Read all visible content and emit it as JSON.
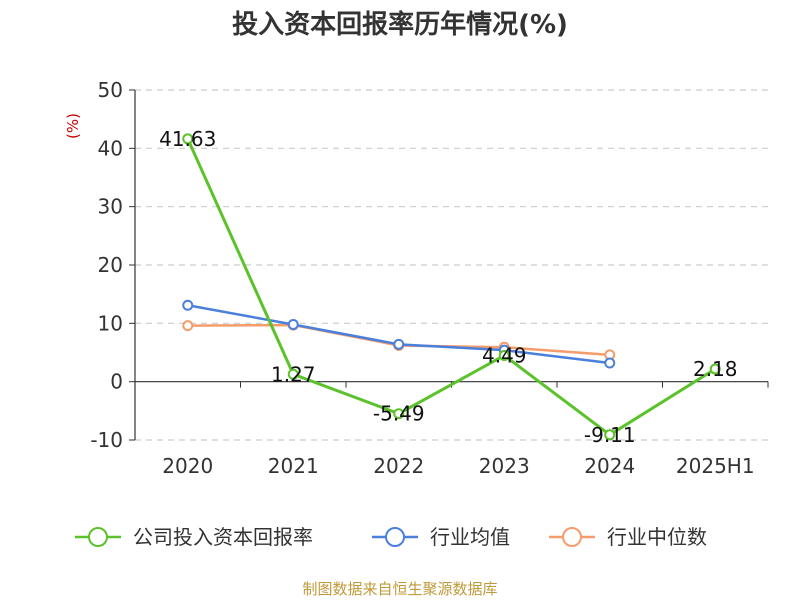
{
  "chart_data": {
    "type": "line",
    "title": "投入资本回报率历年情况(%)",
    "ylabel": "(%)",
    "categories": [
      "2020",
      "2021",
      "2022",
      "2023",
      "2024",
      "2025H1"
    ],
    "ylim": [
      -10,
      50
    ],
    "yticks": [
      -10,
      0,
      10,
      20,
      30,
      40,
      50
    ],
    "grid": true,
    "legend_position": "bottom",
    "series": [
      {
        "name": "公司投入资本回报率",
        "color": "#5cc22b",
        "values": [
          41.63,
          1.27,
          -5.49,
          4.49,
          -9.11,
          2.18
        ],
        "labels": [
          "41.63",
          "1.27",
          "-5.49",
          "4.49",
          "-9.11",
          "2.18"
        ]
      },
      {
        "name": "行业均值",
        "color": "#4a7fdc",
        "values": [
          13.1,
          9.8,
          6.4,
          5.4,
          3.2,
          null
        ]
      },
      {
        "name": "行业中位数",
        "color": "#f59c6b",
        "values": [
          9.6,
          9.7,
          6.2,
          5.9,
          4.6,
          null
        ]
      }
    ]
  },
  "source": "制图数据来自恒生聚源数据库"
}
